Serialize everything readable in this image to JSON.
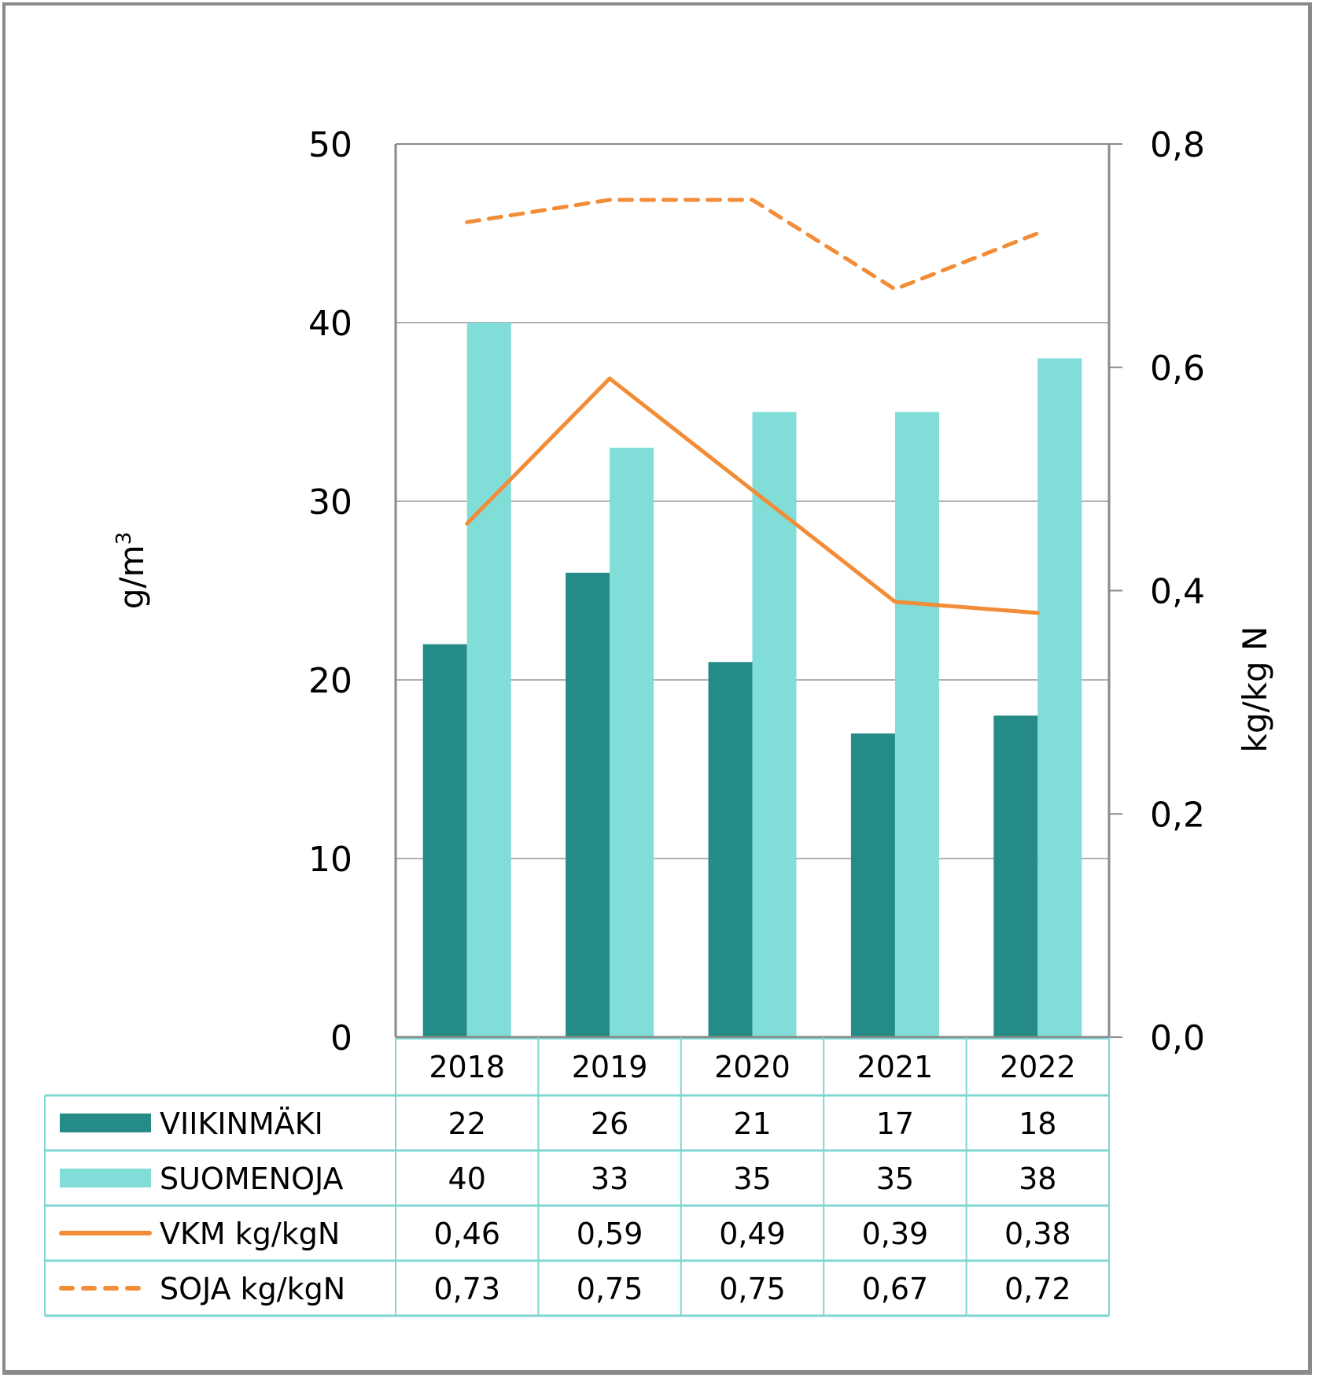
{
  "chart_data": {
    "type": "bar",
    "title": "",
    "categories": [
      "2018",
      "2019",
      "2020",
      "2021",
      "2022"
    ],
    "series": [
      {
        "name": "VIIKINMÄKI",
        "kind": "bar",
        "axis": "left",
        "color": "#248B87",
        "values": [
          22,
          26,
          21,
          17,
          18
        ],
        "labels": [
          "22",
          "26",
          "21",
          "17",
          "18"
        ]
      },
      {
        "name": "SUOMENOJA",
        "kind": "bar",
        "axis": "left",
        "color": "#80DDD8",
        "values": [
          40,
          33,
          35,
          35,
          38
        ],
        "labels": [
          "40",
          "33",
          "35",
          "35",
          "38"
        ]
      },
      {
        "name": "VKM kg/kgN",
        "kind": "line",
        "style": "solid",
        "axis": "right",
        "color": "#F28C36",
        "values": [
          0.46,
          0.59,
          0.49,
          0.39,
          0.38
        ],
        "labels": [
          "0,46",
          "0,59",
          "0,49",
          "0,39",
          "0,38"
        ]
      },
      {
        "name": "SOJA kg/kgN",
        "kind": "line",
        "style": "dashed",
        "axis": "right",
        "color": "#F28C36",
        "values": [
          0.73,
          0.75,
          0.75,
          0.67,
          0.72
        ],
        "labels": [
          "0,73",
          "0,75",
          "0,75",
          "0,67",
          "0,72"
        ]
      }
    ],
    "ylabel": "g/m3",
    "ylabel_base": "g/m",
    "ylabel_sup": "3",
    "y2label": "kg/kg N",
    "ylim": [
      0,
      50
    ],
    "y2lim": [
      0,
      0.8
    ],
    "yticks": [
      0,
      10,
      20,
      30,
      40,
      50
    ],
    "ytick_labels": [
      "0",
      "10",
      "20",
      "30",
      "40",
      "50"
    ],
    "y2ticks": [
      0,
      0.2,
      0.4,
      0.6,
      0.8
    ],
    "y2tick_labels": [
      "0,0",
      "0,2",
      "0,4",
      "0,6",
      "0,8"
    ],
    "grid": true,
    "legend": "data-table-below"
  },
  "colors": {
    "grid": "#b0b0b0",
    "axis": "#8a8a8a",
    "table_border": "#7fd6d2"
  }
}
